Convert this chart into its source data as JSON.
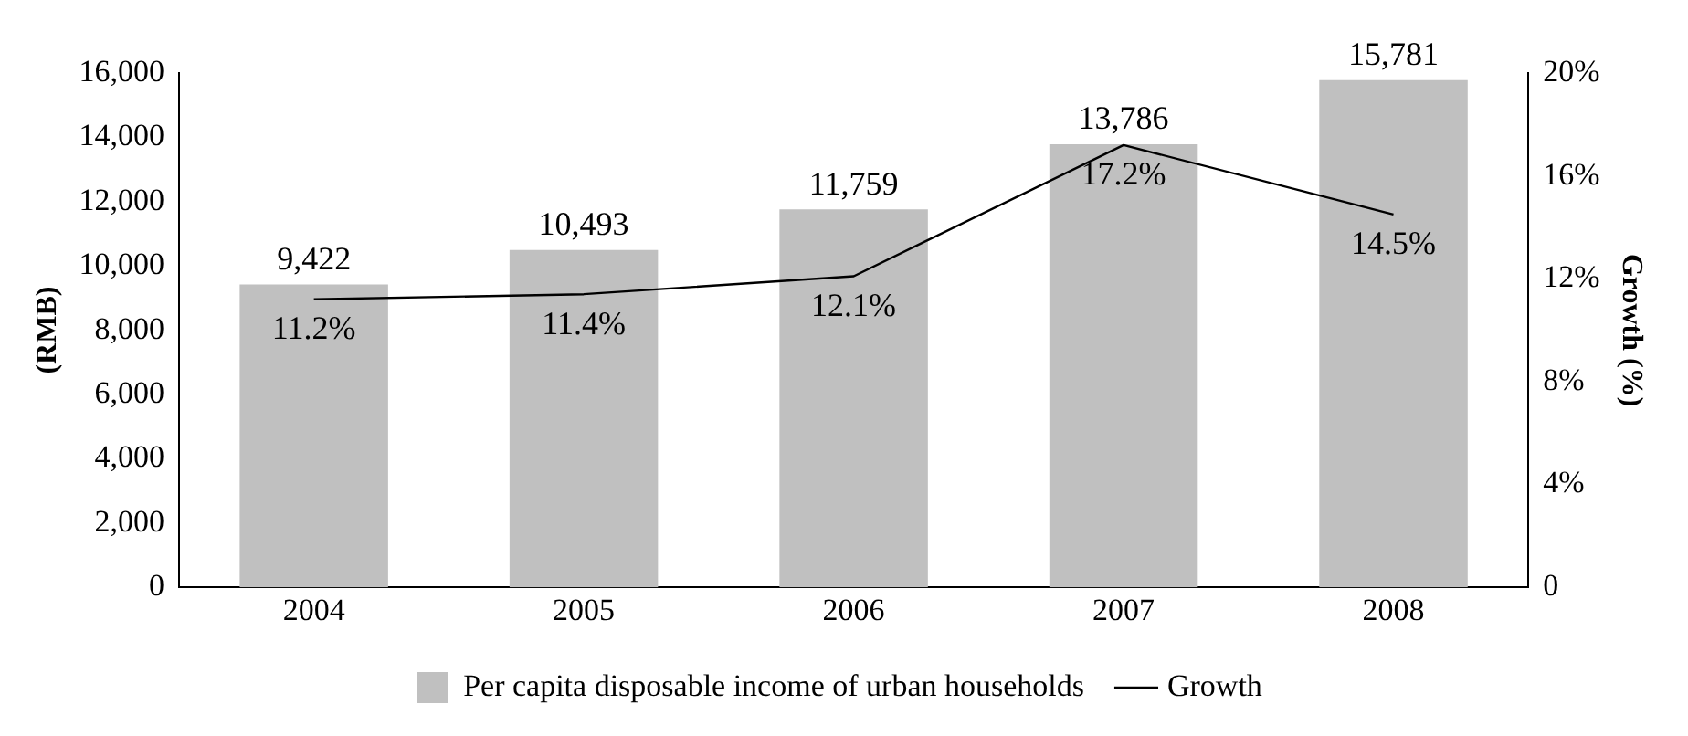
{
  "chart_data": {
    "type": "bar",
    "categories": [
      "2004",
      "2005",
      "2006",
      "2007",
      "2008"
    ],
    "series": [
      {
        "name": "Per capita disposable income of urban households",
        "color": "#c0c0c0",
        "values": [
          9422,
          10493,
          11759,
          13786,
          15781
        ],
        "value_labels": [
          "9,422",
          "10,493",
          "11,759",
          "13,786",
          "15,781"
        ]
      },
      {
        "name": "Growth",
        "type": "line",
        "axis": "y2",
        "color": "#000000",
        "values": [
          11.2,
          11.4,
          12.1,
          17.2,
          14.5
        ],
        "value_labels": [
          "11.2%",
          "11.4%",
          "12.1%",
          "17.2%",
          "14.5%"
        ]
      }
    ],
    "ylabel": "(RMB)",
    "y2label": "Growth (%)",
    "ylim": [
      0,
      16000
    ],
    "yticks": [
      {
        "value": 0,
        "label": "0"
      },
      {
        "value": 2000,
        "label": "2,000"
      },
      {
        "value": 4000,
        "label": "4,000"
      },
      {
        "value": 6000,
        "label": "6,000"
      },
      {
        "value": 8000,
        "label": "8,000"
      },
      {
        "value": 10000,
        "label": "10,000"
      },
      {
        "value": 12000,
        "label": "12,000"
      },
      {
        "value": 14000,
        "label": "14,000"
      },
      {
        "value": 16000,
        "label": "16,000"
      }
    ],
    "y2lim": [
      0,
      20
    ],
    "y2ticks": [
      {
        "value": 0,
        "label": "0"
      },
      {
        "value": 4,
        "label": "4%"
      },
      {
        "value": 8,
        "label": "8%"
      },
      {
        "value": 12,
        "label": "12%"
      },
      {
        "value": 16,
        "label": "16%"
      },
      {
        "value": 20,
        "label": "20%"
      }
    ],
    "legend": "bottom",
    "grid": false,
    "marker": "none",
    "line_style": "solid"
  }
}
